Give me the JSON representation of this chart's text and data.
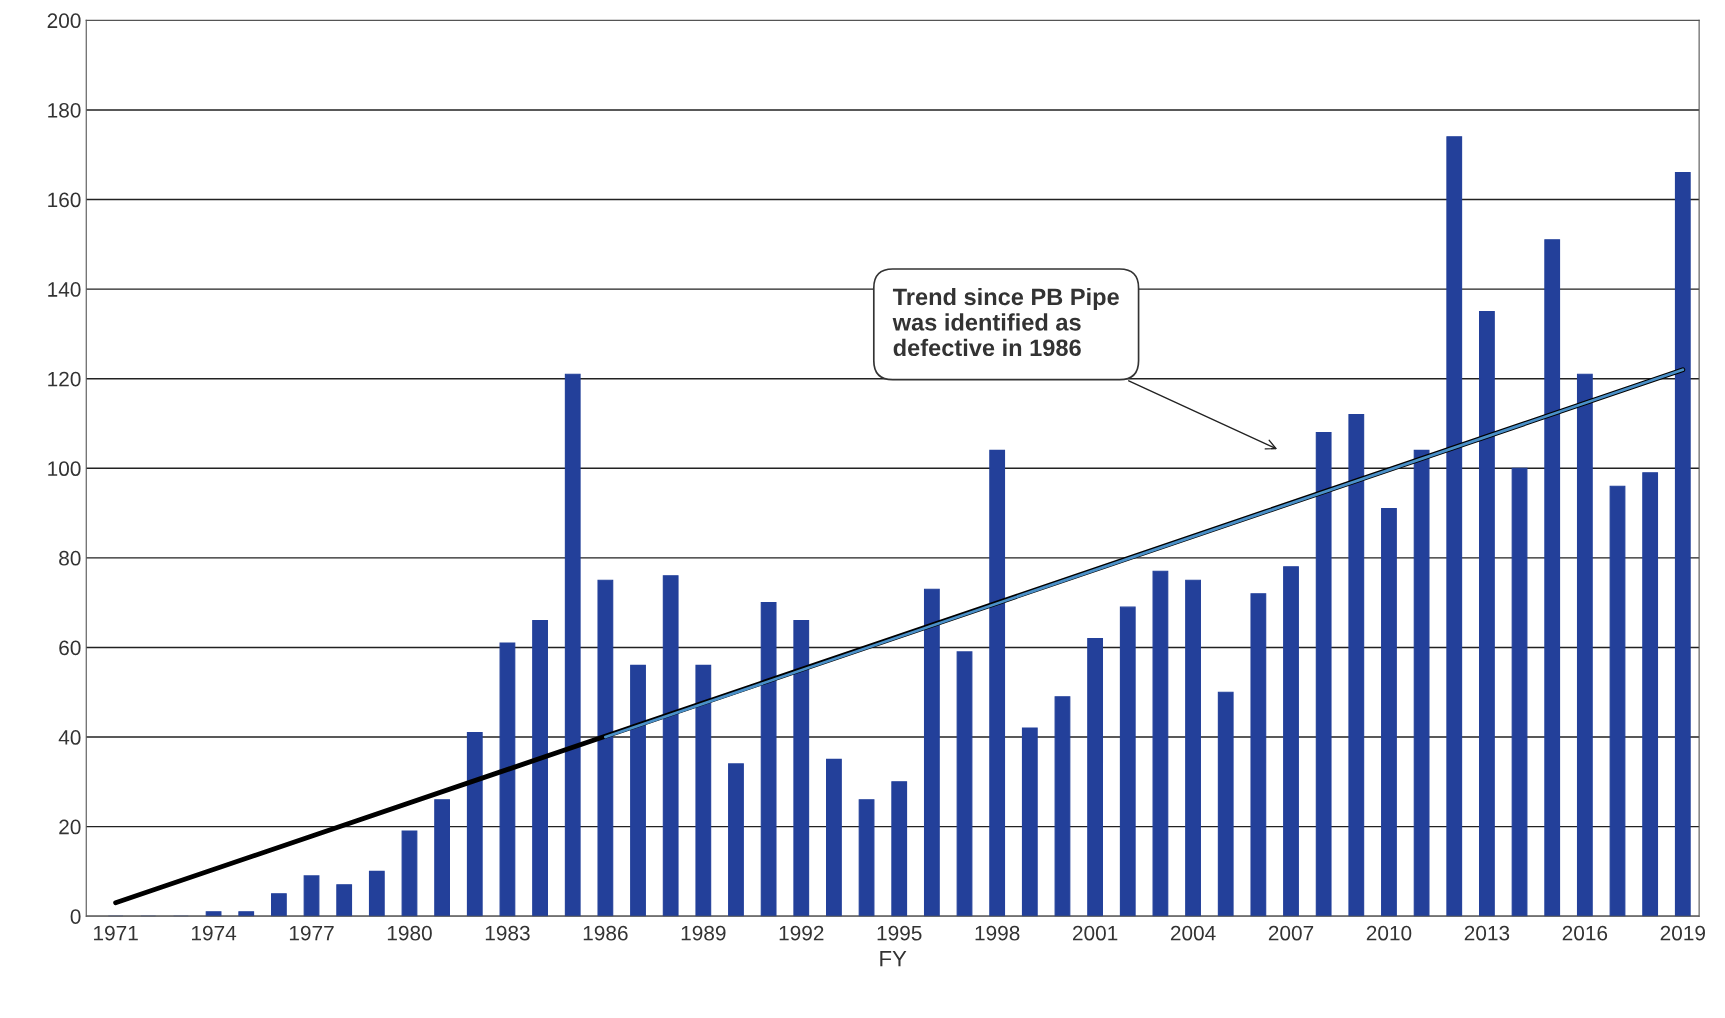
{
  "chart_data": {
    "type": "bar",
    "xlabel": "FY",
    "categories": [
      "1971",
      null,
      null,
      "1974",
      null,
      null,
      "1977",
      null,
      null,
      "1980",
      null,
      null,
      "1983",
      null,
      null,
      "1986",
      null,
      null,
      "1989",
      null,
      null,
      "1992",
      null,
      null,
      "1995",
      null,
      null,
      "1998",
      null,
      null,
      "2001",
      null,
      null,
      "2004",
      null,
      null,
      "2007",
      null,
      null,
      "2010",
      null,
      null,
      "2013",
      null,
      null,
      "2016",
      null,
      null,
      "2019"
    ],
    "series": [
      {
        "color": "#23409a",
        "values": [
          0,
          0,
          0,
          1,
          1,
          5,
          9,
          7,
          10,
          19,
          26,
          41,
          61,
          66,
          121,
          75,
          56,
          76,
          56,
          34,
          70,
          66,
          35,
          26,
          30,
          73,
          59,
          104,
          42,
          49,
          62,
          69,
          77,
          75,
          50,
          72,
          78,
          108,
          112,
          91,
          104,
          174,
          135,
          100,
          151,
          121,
          96,
          99,
          166
        ]
      },
      {
        "type": "line",
        "color": "#000000",
        "values": [
          3,
          null,
          null,
          null,
          null,
          null,
          null,
          null,
          null,
          null,
          null,
          null,
          null,
          null,
          null,
          null,
          null,
          null,
          null,
          null,
          null,
          null,
          null,
          null,
          null,
          null,
          null,
          null,
          null,
          null,
          null,
          null,
          null,
          null,
          null,
          null,
          null,
          null,
          null,
          null,
          null,
          null,
          null,
          null,
          null,
          null,
          null,
          null,
          122
        ]
      },
      {
        "type": "line",
        "color": "#4a90c8",
        "values": [
          null,
          null,
          null,
          null,
          null,
          null,
          null,
          null,
          null,
          null,
          null,
          null,
          null,
          null,
          null,
          40,
          null,
          null,
          null,
          null,
          null,
          null,
          null,
          null,
          null,
          null,
          null,
          null,
          null,
          null,
          null,
          null,
          null,
          null,
          null,
          null,
          null,
          null,
          null,
          null,
          null,
          null,
          null,
          null,
          null,
          null,
          null,
          null,
          122
        ]
      }
    ],
    "annotations": [
      "Trend since PB Pipe\nwas identified as\ndefective in 1986"
    ],
    "ylim": [
      0,
      200
    ],
    "yticks": [
      0,
      20,
      40,
      60,
      80,
      100,
      120,
      140,
      160,
      180,
      200
    ],
    "grid": "y",
    "legend": false
  }
}
